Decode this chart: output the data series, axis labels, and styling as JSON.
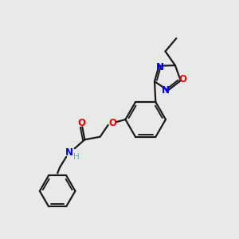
{
  "background_color": "#e8eae8",
  "bond_color": "#1a1a1a",
  "N_color": "#0000ee",
  "O_color": "#ee0000",
  "H_color": "#5aafaf",
  "lw": 1.6,
  "fs": 8.5,
  "xlim": [
    0,
    10
  ],
  "ylim": [
    0,
    10
  ]
}
